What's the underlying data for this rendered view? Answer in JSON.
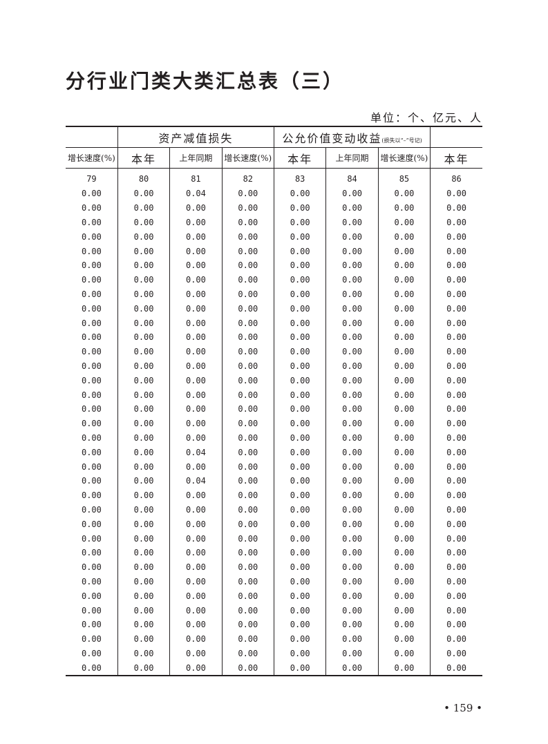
{
  "title": "分行业门类大类汇总表（三）",
  "unit": "单位：个、亿元、人",
  "header": {
    "group1": "资产减值损失",
    "group2": "公允价值变动收益",
    "group2_note": "(损失以“–”号记)",
    "columns": [
      "增长速度(%)",
      "本年",
      "上年同期",
      "增长速度(%)",
      "本年",
      "上年同期",
      "增长速度(%)",
      "本年"
    ],
    "numbers": [
      "79",
      "80",
      "81",
      "82",
      "83",
      "84",
      "85",
      "86"
    ]
  },
  "rows": [
    [
      "0.00",
      "0.00",
      "0.04",
      "0.00",
      "0.00",
      "0.00",
      "0.00",
      "0.00"
    ],
    [
      "0.00",
      "0.00",
      "0.00",
      "0.00",
      "0.00",
      "0.00",
      "0.00",
      "0.00"
    ],
    [
      "0.00",
      "0.00",
      "0.00",
      "0.00",
      "0.00",
      "0.00",
      "0.00",
      "0.00"
    ],
    [
      "0.00",
      "0.00",
      "0.00",
      "0.00",
      "0.00",
      "0.00",
      "0.00",
      "0.00"
    ],
    [
      "0.00",
      "0.00",
      "0.00",
      "0.00",
      "0.00",
      "0.00",
      "0.00",
      "0.00"
    ],
    [
      "0.00",
      "0.00",
      "0.00",
      "0.00",
      "0.00",
      "0.00",
      "0.00",
      "0.00"
    ],
    [
      "0.00",
      "0.00",
      "0.00",
      "0.00",
      "0.00",
      "0.00",
      "0.00",
      "0.00"
    ],
    [
      "0.00",
      "0.00",
      "0.00",
      "0.00",
      "0.00",
      "0.00",
      "0.00",
      "0.00"
    ],
    [
      "0.00",
      "0.00",
      "0.00",
      "0.00",
      "0.00",
      "0.00",
      "0.00",
      "0.00"
    ],
    [
      "0.00",
      "0.00",
      "0.00",
      "0.00",
      "0.00",
      "0.00",
      "0.00",
      "0.00"
    ],
    [
      "0.00",
      "0.00",
      "0.00",
      "0.00",
      "0.00",
      "0.00",
      "0.00",
      "0.00"
    ],
    [
      "0.00",
      "0.00",
      "0.00",
      "0.00",
      "0.00",
      "0.00",
      "0.00",
      "0.00"
    ],
    [
      "0.00",
      "0.00",
      "0.00",
      "0.00",
      "0.00",
      "0.00",
      "0.00",
      "0.00"
    ],
    [
      "0.00",
      "0.00",
      "0.00",
      "0.00",
      "0.00",
      "0.00",
      "0.00",
      "0.00"
    ],
    [
      "0.00",
      "0.00",
      "0.00",
      "0.00",
      "0.00",
      "0.00",
      "0.00",
      "0.00"
    ],
    [
      "0.00",
      "0.00",
      "0.00",
      "0.00",
      "0.00",
      "0.00",
      "0.00",
      "0.00"
    ],
    [
      "0.00",
      "0.00",
      "0.00",
      "0.00",
      "0.00",
      "0.00",
      "0.00",
      "0.00"
    ],
    [
      "0.00",
      "0.00",
      "0.00",
      "0.00",
      "0.00",
      "0.00",
      "0.00",
      "0.00"
    ],
    [
      "0.00",
      "0.00",
      "0.04",
      "0.00",
      "0.00",
      "0.00",
      "0.00",
      "0.00"
    ],
    [
      "0.00",
      "0.00",
      "0.00",
      "0.00",
      "0.00",
      "0.00",
      "0.00",
      "0.00"
    ],
    [
      "0.00",
      "0.00",
      "0.04",
      "0.00",
      "0.00",
      "0.00",
      "0.00",
      "0.00"
    ],
    [
      "0.00",
      "0.00",
      "0.00",
      "0.00",
      "0.00",
      "0.00",
      "0.00",
      "0.00"
    ],
    [
      "0.00",
      "0.00",
      "0.00",
      "0.00",
      "0.00",
      "0.00",
      "0.00",
      "0.00"
    ],
    [
      "0.00",
      "0.00",
      "0.00",
      "0.00",
      "0.00",
      "0.00",
      "0.00",
      "0.00"
    ],
    [
      "0.00",
      "0.00",
      "0.00",
      "0.00",
      "0.00",
      "0.00",
      "0.00",
      "0.00"
    ],
    [
      "0.00",
      "0.00",
      "0.00",
      "0.00",
      "0.00",
      "0.00",
      "0.00",
      "0.00"
    ],
    [
      "0.00",
      "0.00",
      "0.00",
      "0.00",
      "0.00",
      "0.00",
      "0.00",
      "0.00"
    ],
    [
      "0.00",
      "0.00",
      "0.00",
      "0.00",
      "0.00",
      "0.00",
      "0.00",
      "0.00"
    ],
    [
      "0.00",
      "0.00",
      "0.00",
      "0.00",
      "0.00",
      "0.00",
      "0.00",
      "0.00"
    ],
    [
      "0.00",
      "0.00",
      "0.00",
      "0.00",
      "0.00",
      "0.00",
      "0.00",
      "0.00"
    ],
    [
      "0.00",
      "0.00",
      "0.00",
      "0.00",
      "0.00",
      "0.00",
      "0.00",
      "0.00"
    ],
    [
      "0.00",
      "0.00",
      "0.00",
      "0.00",
      "0.00",
      "0.00",
      "0.00",
      "0.00"
    ],
    [
      "0.00",
      "0.00",
      "0.00",
      "0.00",
      "0.00",
      "0.00",
      "0.00",
      "0.00"
    ],
    [
      "0.00",
      "0.00",
      "0.00",
      "0.00",
      "0.00",
      "0.00",
      "0.00",
      "0.00"
    ]
  ],
  "page_number": "• 159 •"
}
